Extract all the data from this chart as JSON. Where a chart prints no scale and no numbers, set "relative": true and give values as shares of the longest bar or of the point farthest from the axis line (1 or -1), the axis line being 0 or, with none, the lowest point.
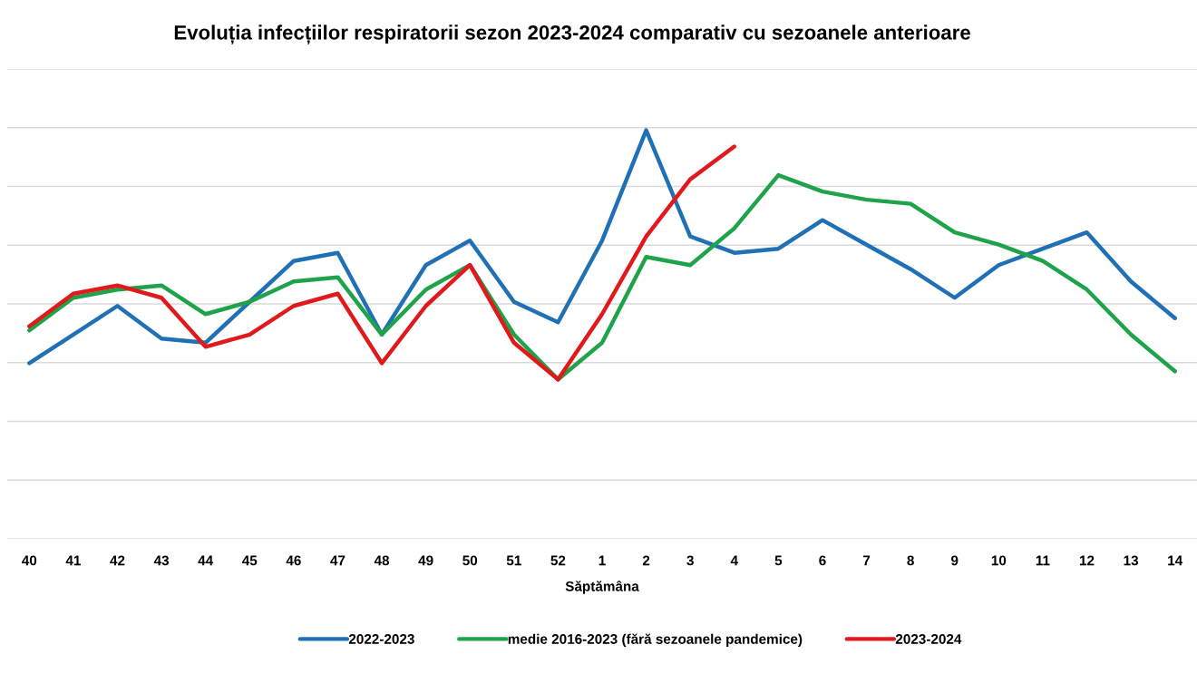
{
  "chart_data": {
    "type": "line",
    "title": "Evoluția infecțiilor respiratorii sezon 2023-2024 comparativ cu sezoanele anterioare",
    "xlabel": "Săptămâna",
    "categories": [
      "40",
      "41",
      "42",
      "43",
      "44",
      "45",
      "46",
      "47",
      "48",
      "49",
      "50",
      "51",
      "52",
      "1",
      "2",
      "3",
      "4",
      "5",
      "6",
      "7",
      "8",
      "9",
      "10",
      "11",
      "12",
      "13",
      "14"
    ],
    "relative": true,
    "grid": "y",
    "legend": "bottom",
    "tick_labels": "x",
    "series": [
      {
        "name": "2022-2023",
        "color": "#1f70b5",
        "values": [
          0.43,
          0.5,
          0.57,
          0.49,
          0.48,
          0.58,
          0.68,
          0.7,
          0.5,
          0.67,
          0.73,
          0.58,
          0.53,
          0.73,
          1.0,
          0.74,
          0.7,
          0.71,
          0.78,
          0.72,
          0.66,
          0.59,
          0.67,
          0.71,
          0.75,
          0.63,
          0.54
        ]
      },
      {
        "name": "medie 2016-2023 (fără sezoanele pandemice)",
        "color": "#1fa34a",
        "values": [
          0.51,
          0.59,
          0.61,
          0.62,
          0.55,
          0.58,
          0.63,
          0.64,
          0.5,
          0.61,
          0.67,
          0.5,
          0.39,
          0.48,
          0.69,
          0.67,
          0.76,
          0.89,
          0.85,
          0.83,
          0.82,
          0.75,
          0.72,
          0.68,
          0.61,
          0.5,
          0.41
        ]
      },
      {
        "name": "2023-2024",
        "color": "#e1191c",
        "values": [
          0.52,
          0.6,
          0.62,
          0.59,
          0.47,
          0.5,
          0.57,
          0.6,
          0.43,
          0.57,
          0.67,
          0.48,
          0.39,
          0.55,
          0.74,
          0.88,
          0.96,
          null,
          null,
          null,
          null,
          null,
          null,
          null,
          null,
          null,
          null
        ]
      }
    ]
  }
}
